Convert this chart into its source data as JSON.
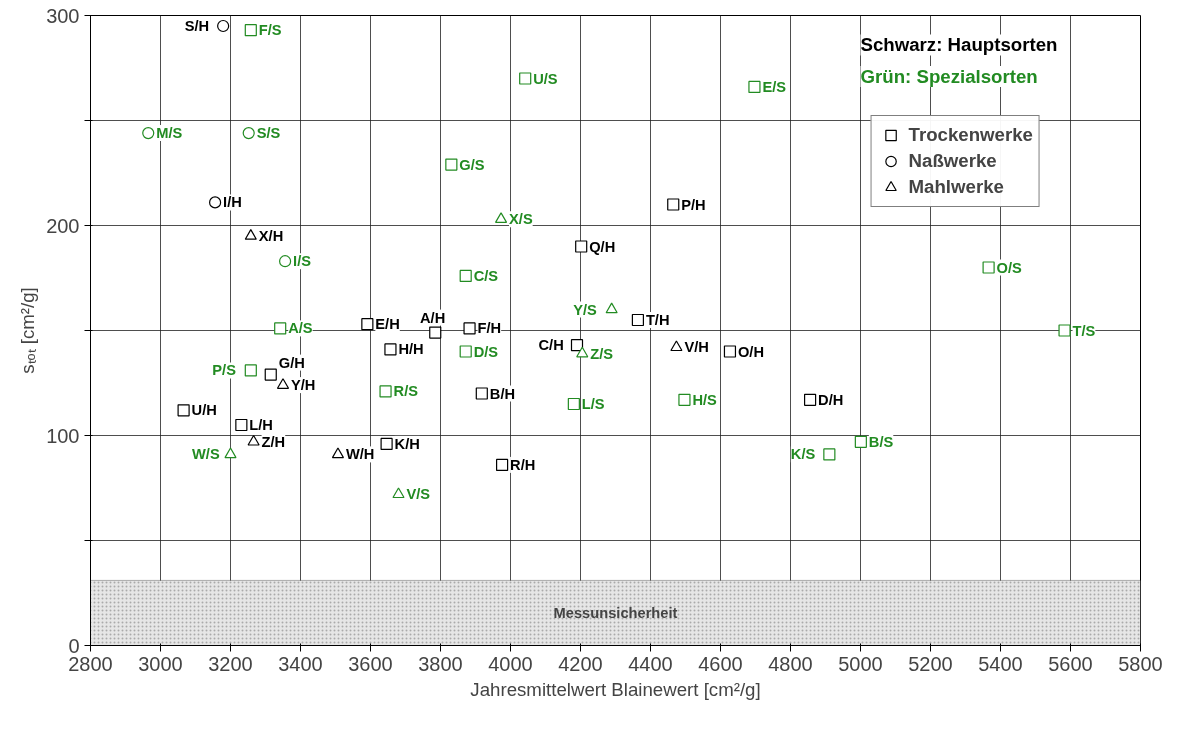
{
  "chart_data": {
    "type": "scatter",
    "xlabel": "Jahresmittelwert Blainewert [cm²/g]",
    "ylabel": "sₜₒₜ [cm²/g]",
    "xlim": [
      2800,
      5800
    ],
    "xticks": [
      2800,
      3000,
      3200,
      3400,
      3600,
      3800,
      4000,
      4200,
      4400,
      4600,
      4800,
      5000,
      5200,
      5400,
      5600,
      5800
    ],
    "ylim": [
      0,
      300
    ],
    "yticks": [
      0,
      {
        "value": 50,
        "label": null
      },
      100,
      {
        "value": 150,
        "label": null
      },
      200,
      {
        "value": 250,
        "label": null
      },
      300
    ],
    "grid": true,
    "legend": "top right",
    "annotations": [
      "Schwarz: Hauptsorten",
      "Grün: Spezialsorten"
    ],
    "bands": [
      {
        "axis": "y",
        "from": 0,
        "to": 31,
        "label": "Messunsicherheit",
        "color": "#e6e6e6"
      }
    ],
    "series": [
      {
        "name": "Trockenwerke",
        "marker": "square",
        "color": "#000000",
        "x": [
          3066,
          3231,
          3315,
          3591,
          3657,
          3646,
          3785,
          3883,
          3918,
          3976,
          4190,
          4202,
          4364,
          4465,
          4627,
          4856
        ],
        "values": [
          112,
          105,
          129,
          153,
          141,
          96,
          149,
          151,
          120,
          86,
          143,
          190,
          155,
          210,
          140,
          117
        ],
        "value_labels": [
          "U/H",
          "L/H",
          "G/H",
          "E/H",
          "H/H",
          "K/H",
          "A/H",
          "F/H",
          "B/H",
          "R/H",
          "C/H",
          "Q/H",
          "T/H",
          "P/H",
          "O/H",
          "D/H"
        ]
      },
      {
        "name": "Naßwerke",
        "marker": "circle",
        "color": "#000000",
        "x": [
          3179,
          3156
        ],
        "values": [
          295,
          211
        ],
        "value_labels": [
          "S/H",
          "I/H"
        ]
      },
      {
        "name": "Mahlwerke",
        "marker": "triangle",
        "color": "#000000",
        "x": [
          3258,
          3350,
          3266,
          3507,
          4474
        ],
        "values": [
          195,
          124,
          97,
          91,
          142
        ],
        "value_labels": [
          "X/H",
          "Y/H",
          "Z/H",
          "W/H",
          "V/H"
        ]
      },
      {
        "marker": "square",
        "color": "#228b22",
        "x": [
          3258,
          4042,
          4697,
          3831,
          3872,
          3342,
          3258,
          3872,
          3643,
          4181,
          4497,
          5366,
          5583,
          5001,
          4911
        ],
        "values": [
          293,
          270,
          266,
          229,
          176,
          151,
          131,
          140,
          121,
          115,
          117,
          180,
          150,
          97,
          91
        ],
        "value_labels": [
          "F/S",
          "U/S",
          "E/S",
          "G/S",
          "C/S",
          "A/S",
          "P/S",
          "D/S",
          "R/S",
          "L/S",
          "H/S",
          "O/S",
          "T/S",
          "B/S",
          "K/S"
        ]
      },
      {
        "marker": "circle",
        "color": "#228b22",
        "x": [
          2965,
          3252,
          3356
        ],
        "values": [
          244,
          244,
          183
        ],
        "value_labels": [
          "M/S",
          "S/S",
          "I/S"
        ]
      },
      {
        "marker": "triangle",
        "color": "#228b22",
        "x": [
          3973,
          4289,
          4205,
          3200,
          3680
        ],
        "values": [
          203,
          160,
          139,
          91,
          72
        ],
        "value_labels": [
          "X/S",
          "Y/S",
          "Z/S",
          "W/S",
          "V/S"
        ]
      }
    ]
  }
}
